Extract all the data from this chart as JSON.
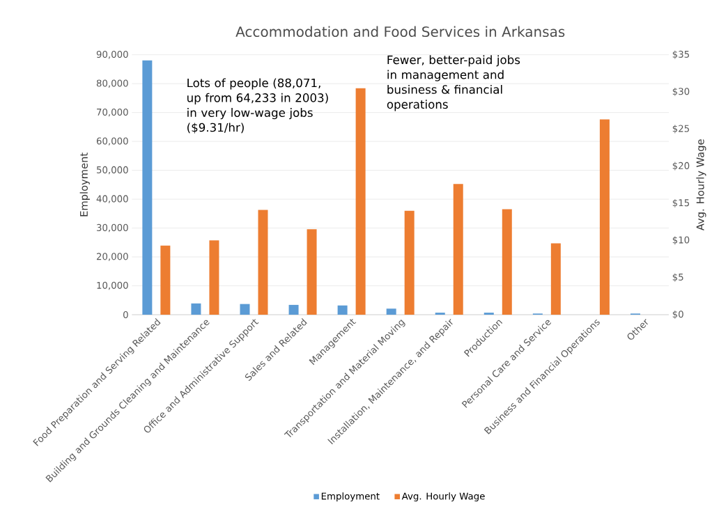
{
  "chart_data": {
    "type": "bar",
    "title": "Accommodation and Food Services in Arkansas",
    "categories": [
      "Food Preparation and Serving Related",
      "Building and Grounds Cleaning and Maintenance",
      "Office and Administrative Support",
      "Sales and Related",
      "Management",
      "Transportation and Material Moving",
      "Installation, Maintenance, and Repair",
      "Production",
      "Personal Care and Service",
      "Business and Financial Operations",
      "Other"
    ],
    "series": [
      {
        "name": "Employment",
        "color": "#5b9bd5",
        "values": [
          88071,
          3900,
          3700,
          3400,
          3200,
          2100,
          700,
          700,
          400,
          0,
          400
        ]
      },
      {
        "name": "Avg. Hourly Wage",
        "color": "#ed7d31",
        "axis": "y2",
        "values": [
          9.31,
          10.0,
          14.1,
          11.5,
          30.5,
          14.0,
          17.6,
          14.2,
          9.6,
          26.3,
          null
        ]
      }
    ],
    "ylabel": "Employment",
    "y2label": "Avg. Hourly Wage",
    "ylim": [
      0,
      90000
    ],
    "yticks": [
      0,
      {
        "value": 10000,
        "label": "10,000"
      },
      {
        "value": 20000,
        "label": "20,000"
      },
      {
        "value": 30000,
        "label": "30,000"
      },
      {
        "value": 40000,
        "label": "40,000"
      },
      {
        "value": 50000,
        "label": "50,000"
      },
      {
        "value": 60000,
        "label": "60,000"
      },
      {
        "value": 70000,
        "label": "70,000"
      },
      {
        "value": 80000,
        "label": "80,000"
      },
      {
        "value": 90000,
        "label": "90,000"
      }
    ],
    "y2lim": [
      0,
      35
    ],
    "y2ticks": [
      {
        "value": 0,
        "label": "$0"
      },
      {
        "value": 5,
        "label": "$5"
      },
      {
        "value": 10,
        "label": "$10"
      },
      {
        "value": 15,
        "label": "$15"
      },
      {
        "value": 20,
        "label": "$20"
      },
      {
        "value": 25,
        "label": "$25"
      },
      {
        "value": 30,
        "label": "$30"
      },
      {
        "value": 35,
        "label": "$35"
      }
    ],
    "grid": "y",
    "legend": "bottom",
    "annotations": [
      "Lots of people (88,071, up from 64,233 in 2003) in very low-wage jobs ($9.31/hr)",
      "Fewer, better-paid jobs in management and business & financial operations"
    ]
  }
}
